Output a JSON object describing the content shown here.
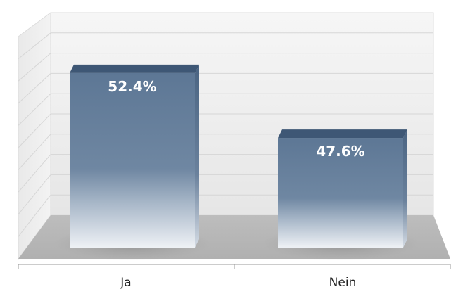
{
  "chart_data": {
    "type": "bar",
    "categories": [
      "Ja",
      "Nein"
    ],
    "values": [
      52.4,
      47.6
    ],
    "value_labels": [
      "52.4%",
      "47.6%"
    ],
    "ylim": [
      40,
      55
    ],
    "grid": true,
    "style": "3d",
    "colors": {
      "bar_top": "#3e5775",
      "bar_front_top": "#5d7795",
      "bar_front_bottom": "#e9edf3",
      "floor": "#b5b5b5",
      "wall": "#eeeeee",
      "grid": "#d6d6d6"
    }
  }
}
